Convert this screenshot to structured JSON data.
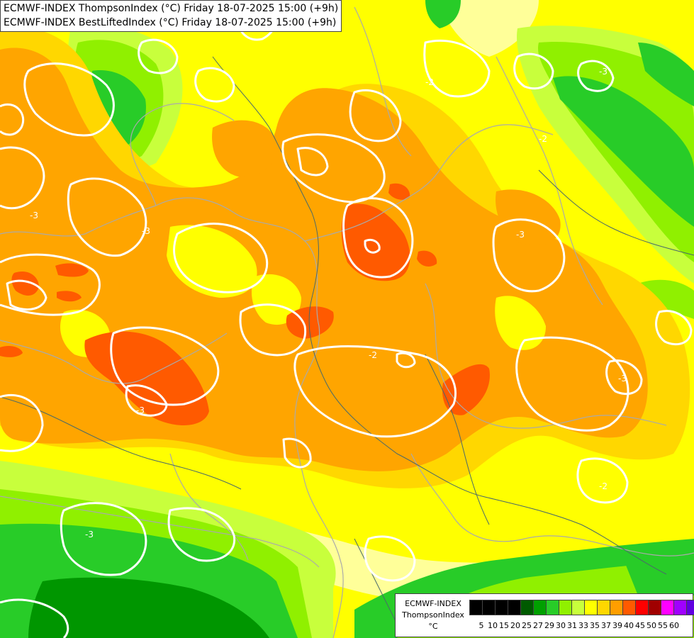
{
  "titles": {
    "line1": "ECMWF-INDEX ThompsonIndex (°C) Friday 18-07-2025 15:00 (+9h)",
    "line2": "ECMWF-INDEX BestLiftedIndex (°C) Friday 18-07-2025 15:00 (+9h)"
  },
  "legend": {
    "model": "ECMWF-INDEX",
    "parameter": "ThompsonIndex",
    "unit": "°C",
    "ticks": [
      "5",
      "10",
      "15",
      "20",
      "25",
      "27",
      "29",
      "30",
      "31",
      "33",
      "35",
      "37",
      "39",
      "40",
      "45",
      "50",
      "55",
      "60"
    ],
    "colors": [
      "#000000",
      "#000000",
      "#000000",
      "#000000",
      "#005a00",
      "#00a000",
      "#28cc28",
      "#90f000",
      "#c8ff3c",
      "#ffff00",
      "#ffd700",
      "#ff9e00",
      "#ff5a00",
      "#ff0000",
      "#a00000",
      "#ff00ff",
      "#a000ff",
      "#6000e0",
      "#0000ff"
    ]
  },
  "contour_labels": [
    "-3",
    "-2",
    "-3",
    "-2",
    "-3",
    "-3",
    "-3",
    "-2",
    "-3",
    "-3",
    "-2"
  ],
  "field_colors": {
    "dark_green": "#009600",
    "green": "#28cc28",
    "lime": "#90f000",
    "yellow_green": "#c8ff3c",
    "yellow": "#ffff00",
    "pale_yellow": "#ffff99",
    "gold": "#ffd700",
    "orange": "#ffa500",
    "red_orange": "#ff5a00"
  },
  "overlay_colors": {
    "isoline": "#ffffff",
    "border": "#aaaaaa",
    "river": "#4a6a6a"
  }
}
